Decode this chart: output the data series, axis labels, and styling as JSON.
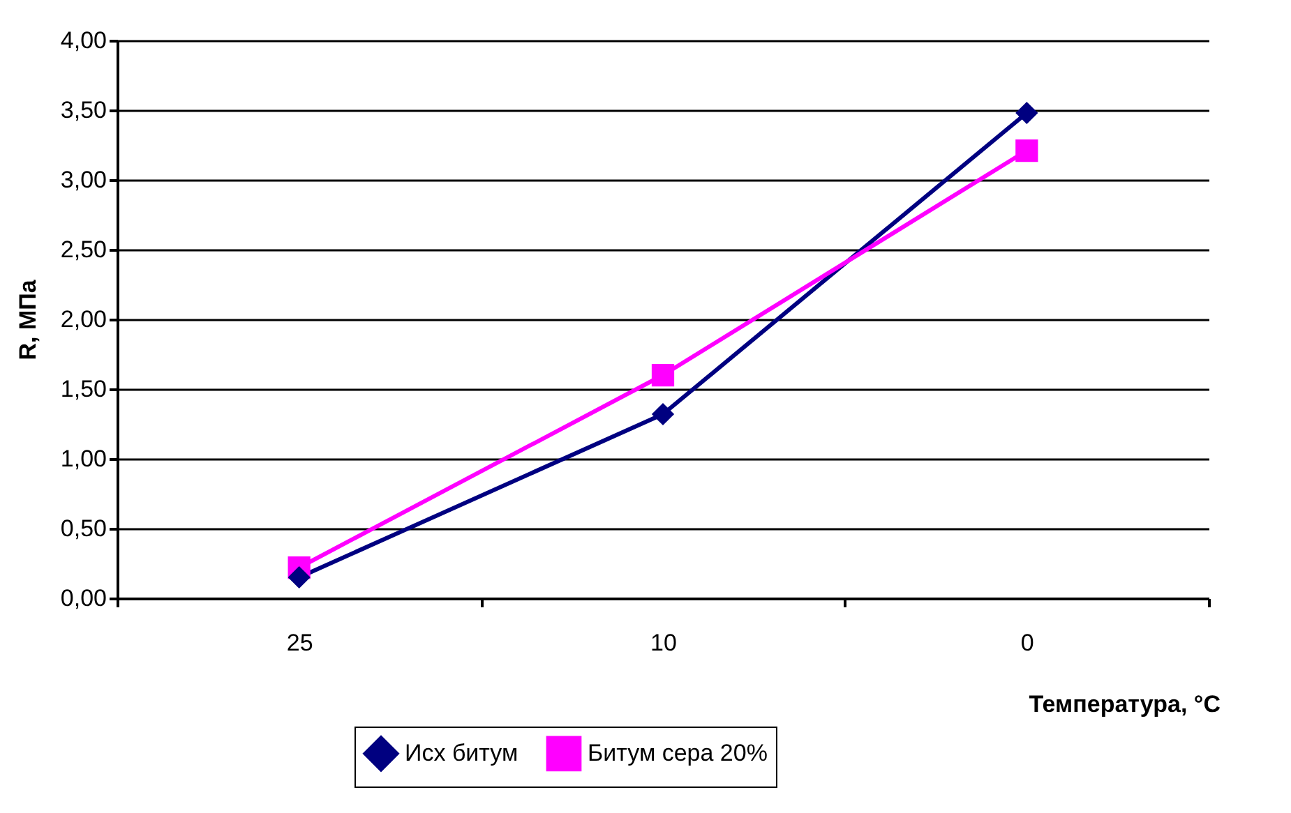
{
  "chart_data": {
    "type": "line",
    "xlabel": "Температура, °C",
    "ylabel": "R, МПа",
    "categories": [
      "25",
      "10",
      "0"
    ],
    "series": [
      {
        "name": "Исх битум",
        "color": "#000080",
        "values": [
          0.15,
          1.32,
          3.48
        ],
        "marker": "diamond"
      },
      {
        "name": "Битум сера 20%",
        "color": "#ff00ff",
        "values": [
          0.22,
          1.6,
          3.21
        ],
        "marker": "square"
      }
    ],
    "ylim": [
      0,
      4
    ],
    "yticks": [
      {
        "value": 0,
        "label": "0,00"
      },
      {
        "value": 0.5,
        "label": "0,50"
      },
      {
        "value": 1,
        "label": "1,00"
      },
      {
        "value": 1.5,
        "label": "1,50"
      },
      {
        "value": 2,
        "label": "2,00"
      },
      {
        "value": 2.5,
        "label": "2,50"
      },
      {
        "value": 3,
        "label": "3,00"
      },
      {
        "value": 3.5,
        "label": "3,50"
      },
      {
        "value": 4,
        "label": "4,00"
      }
    ],
    "grid": "y",
    "legend": "bottom",
    "line_style": "solid"
  }
}
